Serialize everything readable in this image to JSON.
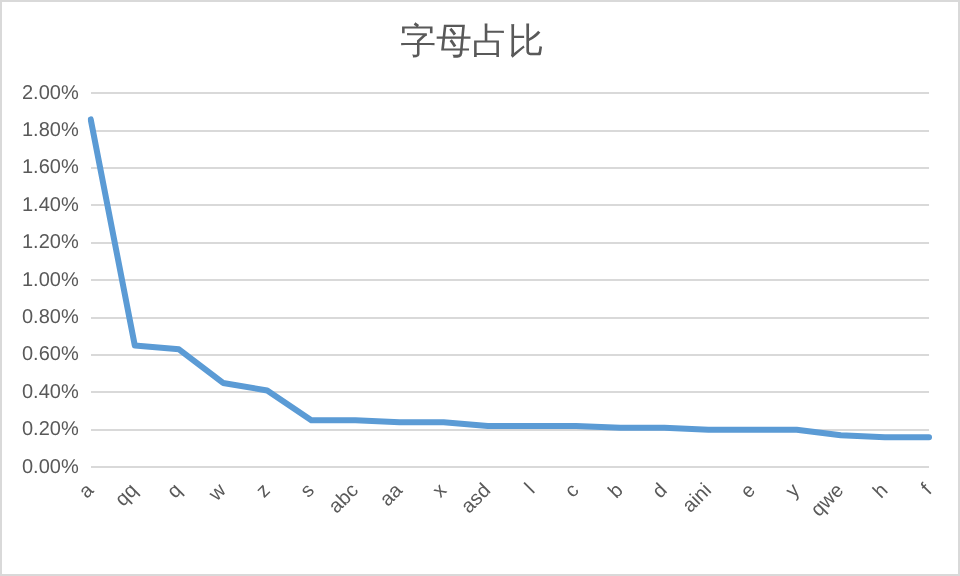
{
  "chart_data": {
    "type": "line",
    "title": "字母占比",
    "categories": [
      "a",
      "qq",
      "q",
      "w",
      "z",
      "s",
      "abc",
      "aa",
      "x",
      "asd",
      "l",
      "c",
      "b",
      "d",
      "aini",
      "e",
      "y",
      "qwe",
      "h",
      "f"
    ],
    "series": [
      {
        "color": "#5b9bd5",
        "values": [
          1.86,
          0.65,
          0.63,
          0.45,
          0.41,
          0.25,
          0.25,
          0.24,
          0.24,
          0.22,
          0.22,
          0.22,
          0.21,
          0.21,
          0.2,
          0.2,
          0.2,
          0.17,
          0.16,
          0.16
        ]
      }
    ],
    "ylim": [
      0,
      2
    ],
    "yticks": [
      {
        "value": 0,
        "label": "0.00%"
      },
      {
        "value": 0.2,
        "label": "0.20%"
      },
      {
        "value": 0.4,
        "label": "0.40%"
      },
      {
        "value": 0.6,
        "label": "0.60%"
      },
      {
        "value": 0.8,
        "label": "0.80%"
      },
      {
        "value": 1,
        "label": "1.00%"
      },
      {
        "value": 1.2,
        "label": "1.20%"
      },
      {
        "value": 1.4,
        "label": "1.40%"
      },
      {
        "value": 1.6,
        "label": "1.60%"
      },
      {
        "value": 1.8,
        "label": "1.80%"
      },
      {
        "value": 2,
        "label": "2.00%"
      }
    ],
    "grid": "y",
    "legend": false,
    "marker": "none",
    "line_style": "solid"
  }
}
